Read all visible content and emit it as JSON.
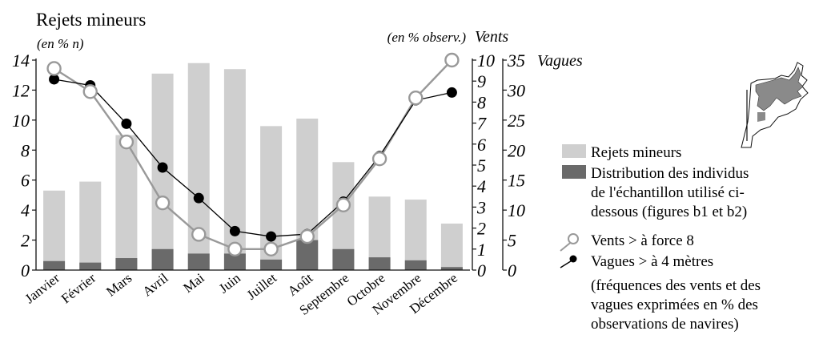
{
  "chart_data": {
    "type": "bar",
    "title": "Rejets mineurs",
    "left_unit": "(en % n)",
    "right_unit": "(en % observ.)",
    "right_axis1_title": "Vents",
    "right_axis2_title": "Vagues",
    "categories": [
      "Janvier",
      "Février",
      "Mars",
      "Avril",
      "Mai",
      "Juin",
      "Juillet",
      "Août",
      "Septembre",
      "Octobre",
      "Novembre",
      "Décembre"
    ],
    "ylim_left": [
      0,
      14
    ],
    "yticks_left": [
      "0",
      "2",
      "4",
      "6",
      "8",
      "10",
      "12",
      "14"
    ],
    "ylim_vents": [
      0,
      10
    ],
    "yticks_vents": [
      "0",
      "1",
      "2",
      "3",
      "4",
      "5",
      "6",
      "7",
      "8",
      "9",
      "10"
    ],
    "ylim_vagues": [
      0,
      35
    ],
    "yticks_vagues": [
      "0",
      "5",
      "10",
      "15",
      "20",
      "25",
      "30",
      "35"
    ],
    "series": [
      {
        "name": "Rejets mineurs",
        "kind": "bar",
        "axis": "left",
        "color": "#cfcfcf",
        "values": [
          5.3,
          5.9,
          9.0,
          13.1,
          13.8,
          13.4,
          9.6,
          10.1,
          7.2,
          4.9,
          4.7,
          3.1
        ]
      },
      {
        "name": "Distribution des individus de l'échantillon utilisé ci-dessous (figures b1 et b2)",
        "kind": "bar",
        "axis": "left",
        "color": "#6a6a6a",
        "values": [
          0.6,
          0.5,
          0.8,
          1.4,
          1.1,
          1.1,
          0.7,
          2.0,
          1.4,
          0.85,
          0.65,
          0.2
        ]
      },
      {
        "name": "Vents > à force 8",
        "kind": "line",
        "axis": "vents",
        "color": "#999999",
        "marker": "open-circle",
        "values": [
          9.6,
          8.5,
          6.1,
          3.2,
          1.7,
          1.0,
          1.0,
          1.6,
          3.1,
          5.3,
          8.2,
          10.0
        ]
      },
      {
        "name": "Vagues > à 4 mètres",
        "kind": "line",
        "axis": "vagues",
        "color": "#000000",
        "marker": "filled-circle",
        "values": [
          31.8,
          30.8,
          24.4,
          17.1,
          12.0,
          6.5,
          5.6,
          6.0,
          11.4,
          19.0,
          28.3,
          29.6
        ]
      }
    ],
    "legend": {
      "position": "right",
      "note_lines": [
        "(fréquences des vents et des",
        "vagues exprimées en % des",
        "observations de navires)"
      ]
    }
  }
}
